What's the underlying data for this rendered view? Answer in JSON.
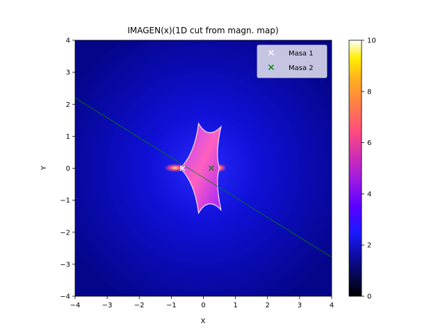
{
  "chart_data": {
    "type": "heatmap",
    "title": "IMAGEN(x)(1D cut from magn. map)",
    "xlabel": "X",
    "ylabel": "Y",
    "xlim": [
      -4,
      4
    ],
    "ylim": [
      -4,
      4
    ],
    "x_ticks": [
      "−4",
      "−3",
      "−2",
      "−1",
      "0",
      "1",
      "2",
      "3",
      "4"
    ],
    "y_ticks": [
      "−4",
      "−3",
      "−2",
      "−1",
      "0",
      "1",
      "2",
      "3",
      "4"
    ],
    "colormap": "gnuplot2",
    "colorbar": {
      "range": [
        0,
        10
      ],
      "ticks": [
        "0",
        "2",
        "4",
        "6",
        "8",
        "10"
      ]
    },
    "grid": false,
    "legend_position": "top-right",
    "series": [
      {
        "name": "Masa 1",
        "marker": "x",
        "color": "#ffffff",
        "x": -0.65,
        "y": 0.0
      },
      {
        "name": "Masa 2",
        "marker": "x",
        "color": "#008000",
        "x": 0.25,
        "y": 0.0
      }
    ],
    "cut_line": {
      "color": "#008000",
      "x": [
        -4,
        4
      ],
      "y": [
        2.2,
        -2.78
      ]
    },
    "caustic": {
      "cusps": [
        [
          -0.72,
          0.0
        ],
        [
          -0.15,
          1.4
        ],
        [
          0.55,
          1.3
        ],
        [
          0.5,
          0.0
        ],
        [
          0.55,
          -1.3
        ],
        [
          -0.15,
          -1.4
        ]
      ]
    }
  }
}
